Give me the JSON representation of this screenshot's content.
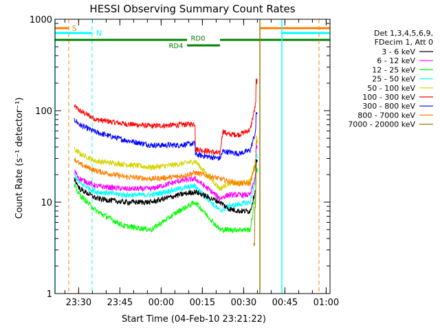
{
  "chart_data": {
    "type": "line",
    "title": "HESSI Observing Summary Count Rates",
    "xlabel": "Start Time (04-Feb-10 23:21:22)",
    "ylabel": "Count Rate (s⁻¹ detector⁻¹)",
    "ylim": [
      1,
      1000
    ],
    "yscale": "log",
    "xlim_minutes": [
      0,
      100
    ],
    "x_ticks": [
      {
        "label": "23:30",
        "minute": 8.6
      },
      {
        "label": "23:45",
        "minute": 23.6
      },
      {
        "label": "00:00",
        "minute": 38.6
      },
      {
        "label": "00:15",
        "minute": 53.6
      },
      {
        "label": "00:30",
        "minute": 68.6
      },
      {
        "label": "00:45",
        "minute": 83.6
      },
      {
        "label": "01:00",
        "minute": 98.6
      }
    ],
    "y_ticks": [
      {
        "label": "1",
        "value": 1
      },
      {
        "label": "10",
        "value": 10
      },
      {
        "label": "100",
        "value": 100
      },
      {
        "label": "1000",
        "value": 1000
      }
    ],
    "legend": {
      "placement": "right",
      "header": [
        "Det 1,3,4,5,6,9,",
        "FDecim 1, Att 0"
      ],
      "entries": [
        {
          "label": "3 - 6 keV",
          "color": "#000000"
        },
        {
          "label": "6 - 12 keV",
          "color": "#ff00ff"
        },
        {
          "label": "12 - 25 keV",
          "color": "#00ff00"
        },
        {
          "label": "25 - 50 keV",
          "color": "#00ffff"
        },
        {
          "label": "50 - 100 keV",
          "color": "#d4d400"
        },
        {
          "label": "100 - 300 keV",
          "color": "#ff0000"
        },
        {
          "label": "300 - 800 keV",
          "color": "#0000ff"
        },
        {
          "label": "800 - 7000 keV",
          "color": "#ff8000"
        },
        {
          "label": "7000 - 20000 keV",
          "color": "#a07800"
        }
      ]
    },
    "annotations": {
      "saa_label": "S",
      "night_label": "N",
      "rd0_label": "RD0",
      "rd4_label": "RD4"
    },
    "series": [
      {
        "name": "100 - 300 keV",
        "color": "#ff0000",
        "x": [
          7,
          9,
          15,
          25,
          35,
          45,
          51,
          51.5,
          60,
          61,
          63,
          67,
          71,
          73,
          73.6
        ],
        "y": [
          112,
          100,
          80,
          72,
          68,
          70,
          72,
          38,
          34,
          60,
          55,
          55,
          62,
          120,
          210
        ]
      },
      {
        "name": "300 - 800 keV",
        "color": "#0000ff",
        "x": [
          7,
          9,
          15,
          25,
          35,
          45,
          51,
          51.5,
          60,
          61,
          67,
          71,
          73,
          73.6
        ],
        "y": [
          80,
          70,
          58,
          48,
          42,
          42,
          44,
          33,
          30,
          36,
          34,
          37,
          60,
          95
        ]
      },
      {
        "name": "50 - 100 keV",
        "color": "#d4d400",
        "x": [
          7,
          9,
          15,
          25,
          35,
          45,
          51,
          60,
          63,
          67,
          71,
          73,
          73.6
        ],
        "y": [
          38,
          34,
          28,
          26,
          24,
          26,
          28,
          14,
          16,
          16,
          17,
          30,
          50
        ]
      },
      {
        "name": "800 - 7000 keV",
        "color": "#ff8000",
        "x": [
          7,
          9,
          15,
          25,
          35,
          45,
          51,
          60,
          63,
          67,
          71,
          73,
          73.6
        ],
        "y": [
          30,
          26,
          22,
          19,
          18,
          19,
          21,
          18,
          17,
          16,
          16,
          26,
          45
        ]
      },
      {
        "name": "6 - 12 keV",
        "color": "#ff00ff",
        "x": [
          7,
          9,
          15,
          25,
          35,
          45,
          51,
          60,
          63,
          67,
          71,
          73,
          73.6
        ],
        "y": [
          22,
          18,
          15,
          14,
          14,
          17,
          18,
          11,
          12,
          12,
          12,
          20,
          40
        ]
      },
      {
        "name": "25 - 50 keV",
        "color": "#00ffff",
        "x": [
          7,
          9,
          15,
          25,
          35,
          45,
          51,
          60,
          63,
          67,
          71,
          73,
          73.6
        ],
        "y": [
          20,
          16,
          13,
          12,
          12,
          14,
          15,
          8,
          9,
          9.5,
          10,
          18,
          32
        ]
      },
      {
        "name": "3 - 6 keV",
        "color": "#000000",
        "x": [
          7,
          9,
          15,
          25,
          35,
          45,
          51,
          60,
          63,
          67,
          71,
          73,
          73.6
        ],
        "y": [
          18,
          14,
          11,
          10,
          10,
          12,
          13,
          10,
          8.5,
          8,
          8,
          14,
          28
        ]
      },
      {
        "name": "12 - 25 keV",
        "color": "#00ff00",
        "x": [
          7,
          9,
          15,
          25,
          35,
          45,
          51,
          60,
          63,
          67,
          71,
          73,
          73.6
        ],
        "y": [
          15,
          12,
          8,
          5.5,
          5,
          8,
          10,
          5,
          5,
          5,
          5,
          12,
          22
        ]
      },
      {
        "name": "7000 - 20000 keV",
        "color": "#a07800",
        "x": [
          72.2,
          72.6,
          73.0,
          73.3
        ],
        "y": [
          2.5,
          3.5,
          9,
          20
        ]
      }
    ]
  }
}
